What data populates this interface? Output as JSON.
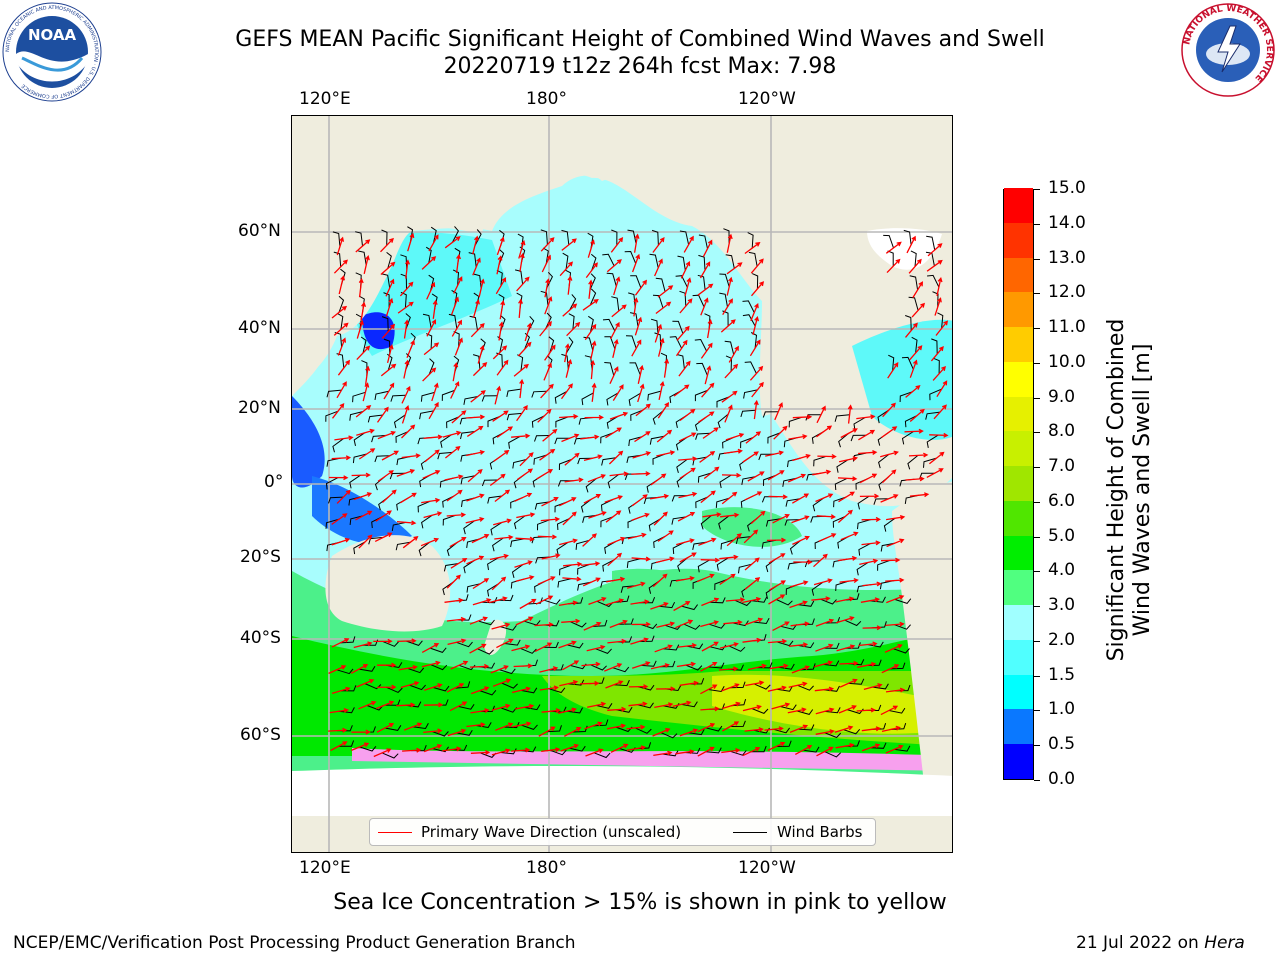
{
  "header": {
    "title_line1": "GEFS MEAN Pacific Significant Height of Combined Wind Waves and Swell",
    "title_line2": "20220719 t12z 264h fcst   Max: 7.98"
  },
  "logos": {
    "left": "noara-logo",
    "left_text": "NOAA",
    "left_ring": "NATIONAL OCEANIC AND ATMOSPHERIC ADMINISTRATION · U.S. DEPARTMENT OF COMMERCE",
    "right": "nws-logo",
    "right_ring": "NATIONAL WEATHER SERVICE"
  },
  "map": {
    "top_lon_labels": [
      "120°E",
      "180°",
      "120°W"
    ],
    "bottom_lon_labels": [
      "120°E",
      "180°",
      "120°W"
    ],
    "lat_labels": [
      "60°N",
      "40°N",
      "20°N",
      "0°",
      "20°S",
      "40°S",
      "60°S"
    ],
    "legend": {
      "wave_label": "Primary Wave Direction (unscaled)",
      "barb_label": "Wind Barbs",
      "wave_color": "#ff0000",
      "barb_color": "#000000"
    }
  },
  "colorbar": {
    "label_line1": "Significant Height of Combined",
    "label_line2": "Wind Waves and Swell [m]",
    "ticks": [
      "0.0",
      "0.5",
      "1.0",
      "1.5",
      "2.0",
      "3.0",
      "4.0",
      "5.0",
      "6.0",
      "7.0",
      "8.0",
      "9.0",
      "10.0",
      "11.0",
      "12.0",
      "13.0",
      "14.0",
      "15.0"
    ],
    "colors": [
      "#0000ff",
      "#0a78ff",
      "#00ffff",
      "#50ffff",
      "#a0ffff",
      "#50ff80",
      "#00ee00",
      "#50e600",
      "#a0e600",
      "#c8f000",
      "#e6f000",
      "#ffff00",
      "#ffcc00",
      "#ff9900",
      "#ff6600",
      "#ff3300",
      "#ff0000"
    ]
  },
  "notes": {
    "sea_ice": "Sea Ice Concentration > 15% is shown in pink to yellow",
    "footer_left": "NCEP/EMC/Verification Post Processing Product Generation Branch",
    "footer_right_date": "21 Jul 2022 on ",
    "footer_right_host": "Hera"
  }
}
